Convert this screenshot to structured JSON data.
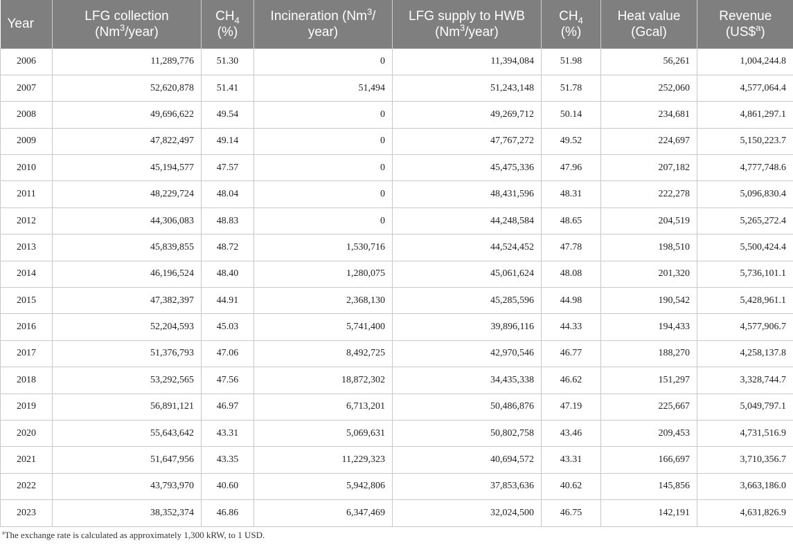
{
  "table": {
    "headers": [
      {
        "line1": "Year",
        "line2": ""
      },
      {
        "line1": "LFG collection",
        "line2_pre": "(Nm",
        "line2_sup": "3",
        "line2_post": "/year)"
      },
      {
        "line1_pre": "CH",
        "line1_sub": "4",
        "line2": "(%)"
      },
      {
        "line1_pre": "Incineration (Nm",
        "line1_sup": "3",
        "line1_post": "/",
        "line2": "year)"
      },
      {
        "line1": "LFG supply to HWB",
        "line2_pre": "(Nm",
        "line2_sup": "3",
        "line2_post": "/year)"
      },
      {
        "line1_pre": "CH",
        "line1_sub": "4",
        "line2": "(%)"
      },
      {
        "line1": "Heat value",
        "line2": "(Gcal)"
      },
      {
        "line1": "Revenue",
        "line2_pre": "(US$",
        "line2_sup": "a",
        "line2_post": ")"
      }
    ],
    "rows": [
      [
        "2006",
        "11,289,776",
        "51.30",
        "0",
        "11,394,084",
        "51.98",
        "56,261",
        "1,004,244.8"
      ],
      [
        "2007",
        "52,620,878",
        "51.41",
        "51,494",
        "51,243,148",
        "51.78",
        "252,060",
        "4,577,064.4"
      ],
      [
        "2008",
        "49,696,622",
        "49.54",
        "0",
        "49,269,712",
        "50.14",
        "234,681",
        "4,861,297.1"
      ],
      [
        "2009",
        "47,822,497",
        "49.14",
        "0",
        "47,767,272",
        "49.52",
        "224,697",
        "5,150,223.7"
      ],
      [
        "2010",
        "45,194,577",
        "47.57",
        "0",
        "45,475,336",
        "47.96",
        "207,182",
        "4,777,748.6"
      ],
      [
        "2011",
        "48,229,724",
        "48.04",
        "0",
        "48,431,596",
        "48.31",
        "222,278",
        "5,096,830.4"
      ],
      [
        "2012",
        "44,306,083",
        "48.83",
        "0",
        "44,248,584",
        "48.65",
        "204,519",
        "5,265,272.4"
      ],
      [
        "2013",
        "45,839,855",
        "48.72",
        "1,530,716",
        "44,524,452",
        "47.78",
        "198,510",
        "5,500,424.4"
      ],
      [
        "2014",
        "46,196,524",
        "48.40",
        "1,280,075",
        "45,061,624",
        "48.08",
        "201,320",
        "5,736,101.1"
      ],
      [
        "2015",
        "47,382,397",
        "44.91",
        "2,368,130",
        "45,285,596",
        "44.98",
        "190,542",
        "5,428,961.1"
      ],
      [
        "2016",
        "52,204,593",
        "45.03",
        "5,741,400",
        "39,896,116",
        "44.33",
        "194,433",
        "4,577,906.7"
      ],
      [
        "2017",
        "51,376,793",
        "47.06",
        "8,492,725",
        "42,970,546",
        "46.77",
        "188,270",
        "4,258,137.8"
      ],
      [
        "2018",
        "53,292,565",
        "47.56",
        "18,872,302",
        "34,435,338",
        "46.62",
        "151,297",
        "3,328,744.7"
      ],
      [
        "2019",
        "56,891,121",
        "46.97",
        "6,713,201",
        "50,486,876",
        "47.19",
        "225,667",
        "5,049,797.1"
      ],
      [
        "2020",
        "55,643,642",
        "43.31",
        "5,069,631",
        "50,802,758",
        "43.46",
        "209,453",
        "4,731,516.9"
      ],
      [
        "2021",
        "51,647,956",
        "43.35",
        "11,229,323",
        "40,694,572",
        "43.31",
        "166,697",
        "3,710,356.7"
      ],
      [
        "2022",
        "43,793,970",
        "40.60",
        "5,942,806",
        "37,853,636",
        "40.62",
        "145,856",
        "3,663,186.0"
      ],
      [
        "2023",
        "38,352,374",
        "46.86",
        "6,347,469",
        "32,024,500",
        "46.75",
        "142,191",
        "4,631,826.9"
      ]
    ]
  },
  "footnote": {
    "marker": "a",
    "text": "The exchange rate is calculated as approximately 1,300 kRW, to 1 USD."
  }
}
